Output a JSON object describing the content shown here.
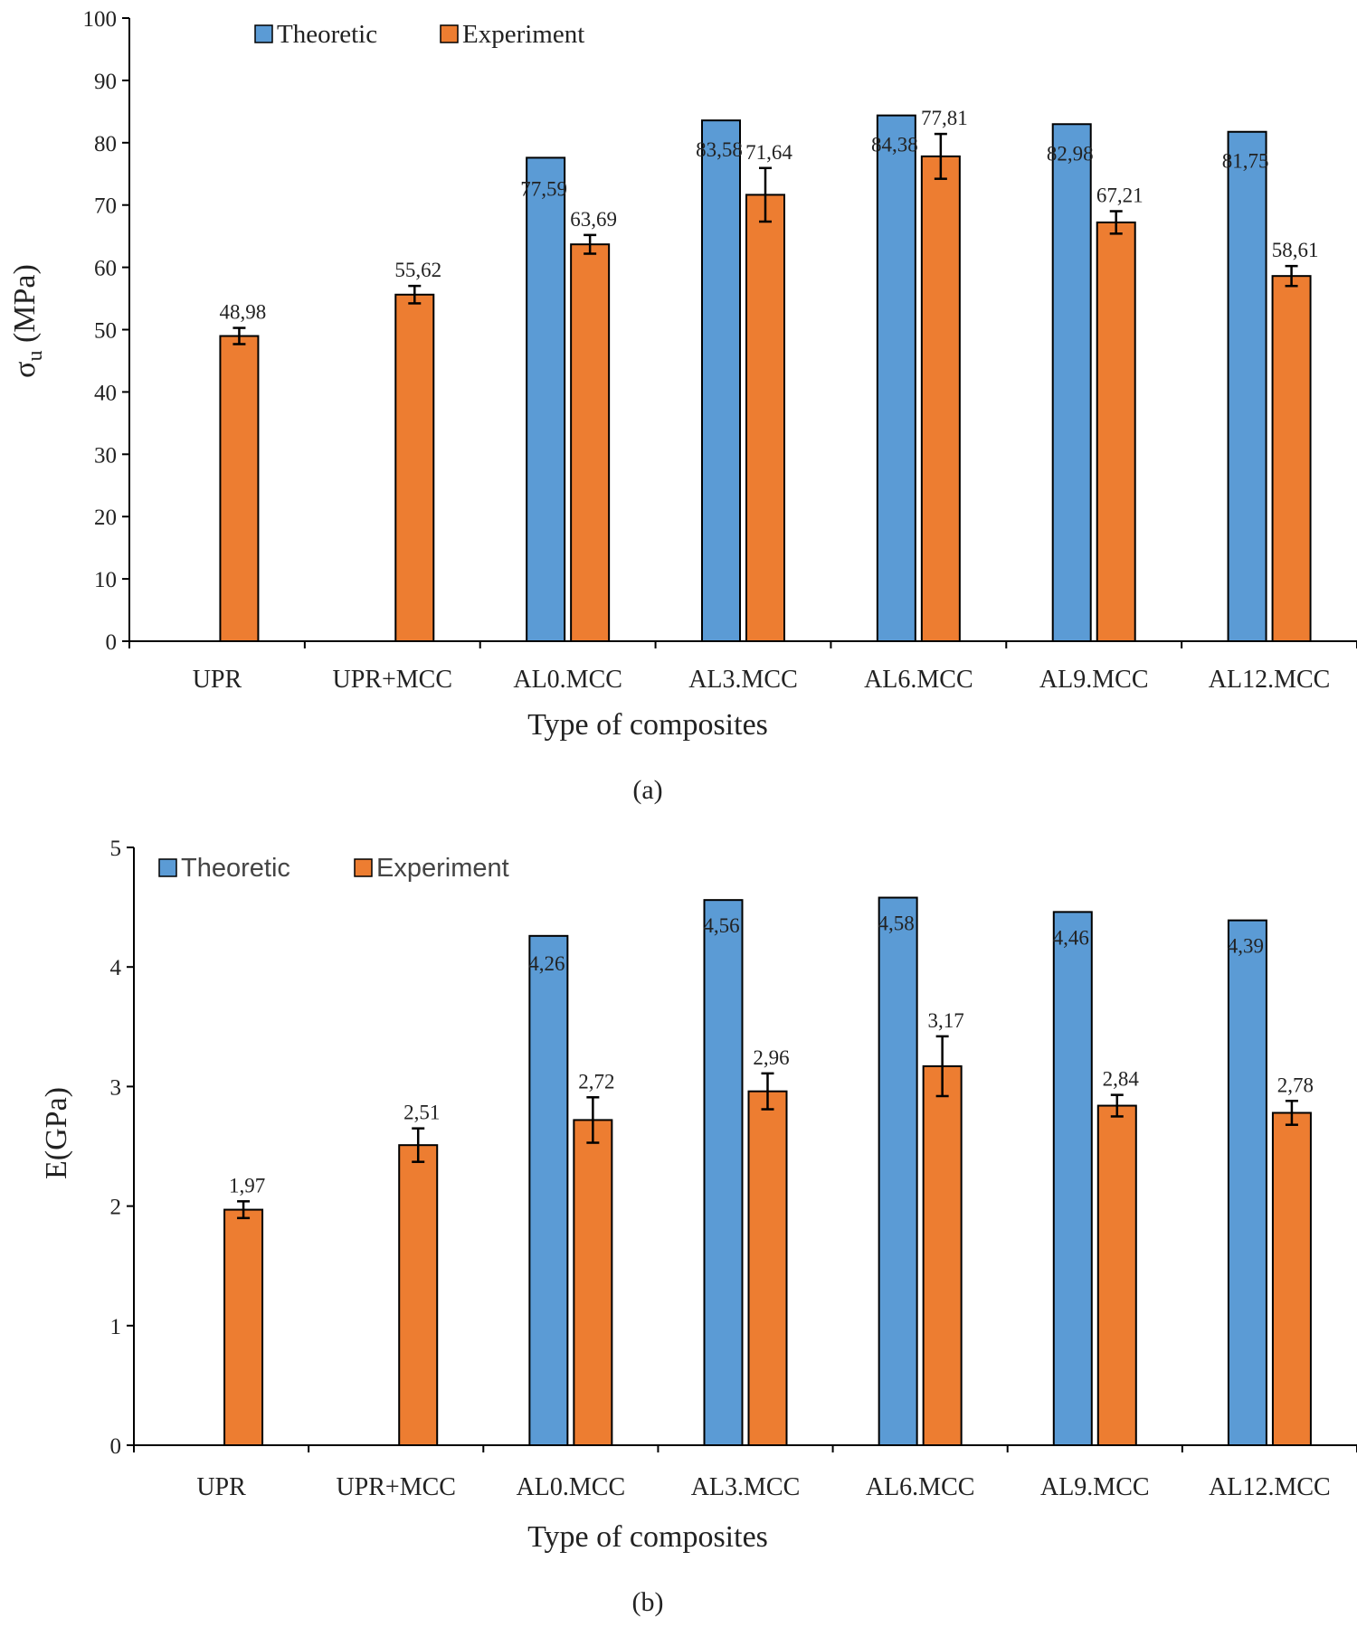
{
  "colors": {
    "theoretic": "#5b9bd5",
    "experiment": "#ed7d31",
    "axis": "#000000"
  },
  "chart_data": [
    {
      "type": "bar",
      "caption": "(a)",
      "title": "",
      "xlabel": "Type of composites",
      "ylabel_main": "σ",
      "ylabel_sub": "u",
      "ylabel_rest": " (MPa)",
      "ylim": [
        0,
        100
      ],
      "yticks": [
        "0",
        "10",
        "20",
        "30",
        "40",
        "50",
        "60",
        "70",
        "80",
        "90",
        "100"
      ],
      "categories": [
        "UPR",
        "UPR+MCC",
        "AL0.MCC",
        "AL3.MCC",
        "AL6.MCC",
        "AL9.MCC",
        "AL12.MCC"
      ],
      "legend": [
        "Theoretic",
        "Experiment"
      ],
      "series": [
        {
          "name": "Theoretic",
          "values": [
            null,
            null,
            77.59,
            83.58,
            84.38,
            82.98,
            81.75
          ],
          "labels": [
            "",
            "",
            "77,59",
            "83,58",
            "84,38",
            "82,98",
            "81,75"
          ]
        },
        {
          "name": "Experiment",
          "values": [
            48.98,
            55.62,
            63.69,
            71.64,
            77.81,
            67.21,
            58.61
          ],
          "labels": [
            "48,98",
            "55,62",
            "63,69",
            "71,64",
            "77,81",
            "67,21",
            "58,61"
          ],
          "errors": [
            1.3,
            1.4,
            1.5,
            4.3,
            3.6,
            1.8,
            1.6
          ]
        }
      ]
    },
    {
      "type": "bar",
      "caption": "(b)",
      "title": "",
      "xlabel": "Type of composites",
      "ylabel_main": "E(GPa)",
      "ylabel_sub": "",
      "ylabel_rest": "",
      "ylim": [
        0,
        5
      ],
      "yticks": [
        "0",
        "1",
        "2",
        "3",
        "4",
        "5"
      ],
      "categories": [
        "UPR",
        "UPR+MCC",
        "AL0.MCC",
        "AL3.MCC",
        "AL6.MCC",
        "AL9.MCC",
        "AL12.MCC"
      ],
      "legend": [
        "Theoretic",
        "Experiment"
      ],
      "series": [
        {
          "name": "Theoretic",
          "values": [
            null,
            null,
            4.26,
            4.56,
            4.58,
            4.46,
            4.39
          ],
          "labels": [
            "",
            "",
            "4,26",
            "4,56",
            "4,58",
            "4,46",
            "4,39"
          ]
        },
        {
          "name": "Experiment",
          "values": [
            1.97,
            2.51,
            2.72,
            2.96,
            3.17,
            2.84,
            2.78
          ],
          "labels": [
            "1,97",
            "2,51",
            "2,72",
            "2,96",
            "3,17",
            "2,84",
            "2,78"
          ],
          "errors": [
            0.07,
            0.14,
            0.19,
            0.15,
            0.25,
            0.09,
            0.1
          ]
        }
      ]
    }
  ]
}
